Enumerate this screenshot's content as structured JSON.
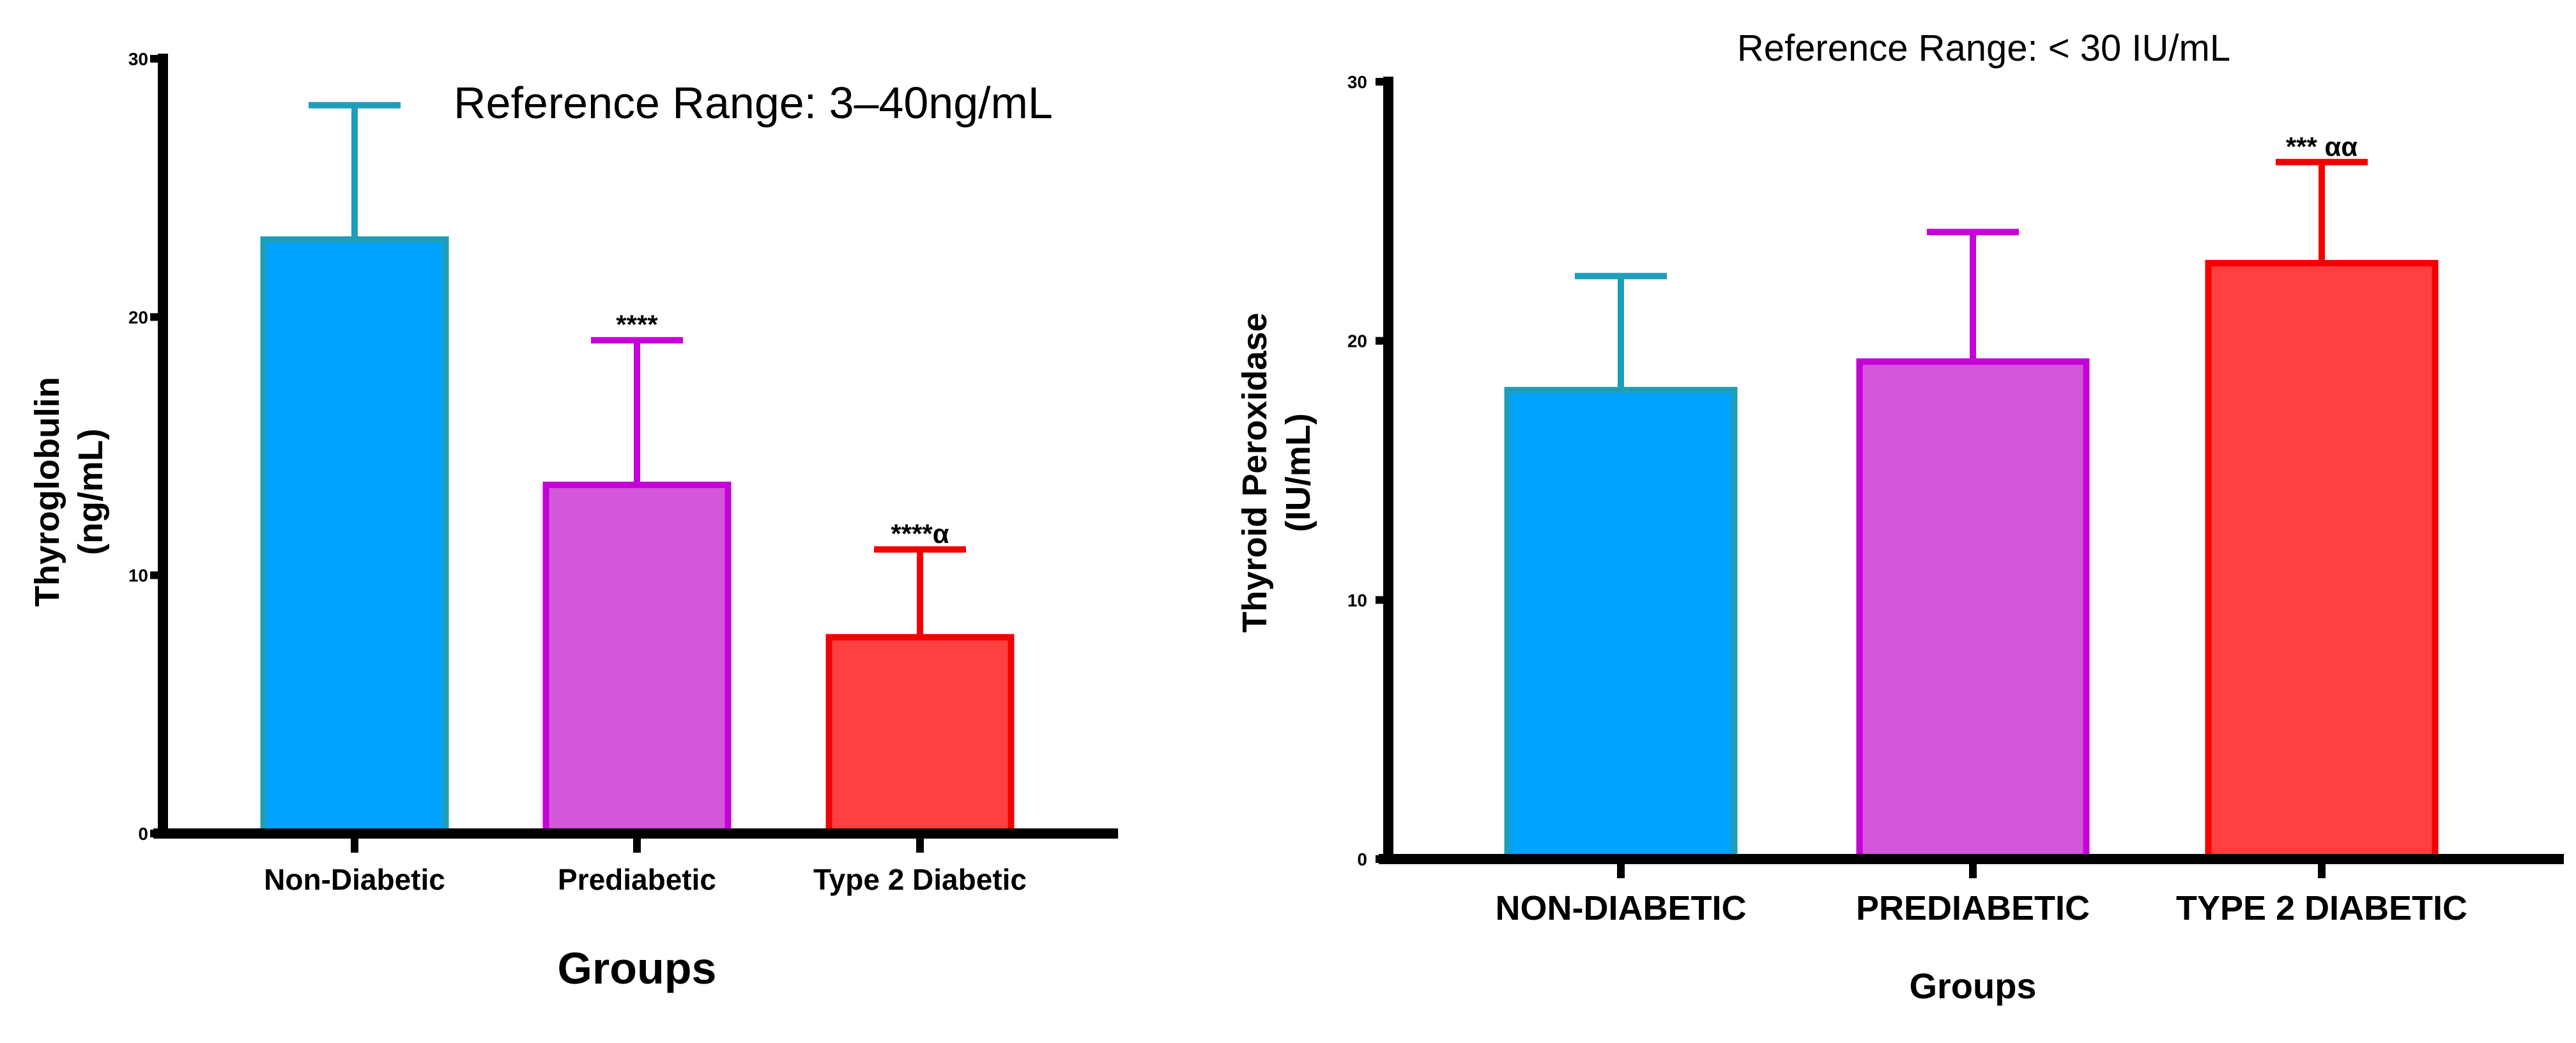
{
  "chart_data": [
    {
      "type": "bar",
      "title": "Reference Range: 3–40ng/mL",
      "xlabel": "Groups",
      "ylabel": [
        "Thyroglobulin",
        "(ng/mL)"
      ],
      "ylim": [
        0,
        30
      ],
      "yticks": [
        0,
        10,
        20,
        30
      ],
      "categories": [
        "Non-Diabetic",
        "Prediabetic",
        "Type 2 Diabetic"
      ],
      "values": [
        23.0,
        13.5,
        7.6
      ],
      "errors": [
        5.2,
        5.6,
        3.4
      ],
      "significance": [
        "",
        "****",
        "****α"
      ],
      "fill_colors": [
        "#00A2FF",
        "#D257DA",
        "#FF4040"
      ],
      "stroke_colors": [
        "#1F9EB9",
        "#C600D8",
        "#F50000"
      ]
    },
    {
      "type": "bar",
      "title": "Reference Range: < 30 IU/mL",
      "xlabel": "Groups",
      "ylabel": [
        "Thyroid Peroxidase",
        "(IU/mL)"
      ],
      "ylim": [
        0,
        30
      ],
      "yticks": [
        0,
        10,
        20,
        30
      ],
      "categories": [
        "NON-DIABETIC",
        "PREDIABETIC",
        "TYPE 2 DIABETIC"
      ],
      "values": [
        18.1,
        19.2,
        23.0
      ],
      "errors": [
        4.4,
        5.0,
        3.9
      ],
      "significance": [
        "",
        "",
        "***  αα"
      ],
      "fill_colors": [
        "#00A2FF",
        "#D257DA",
        "#FF4040"
      ],
      "stroke_colors": [
        "#1F9EB9",
        "#C600D8",
        "#F50000"
      ]
    }
  ]
}
